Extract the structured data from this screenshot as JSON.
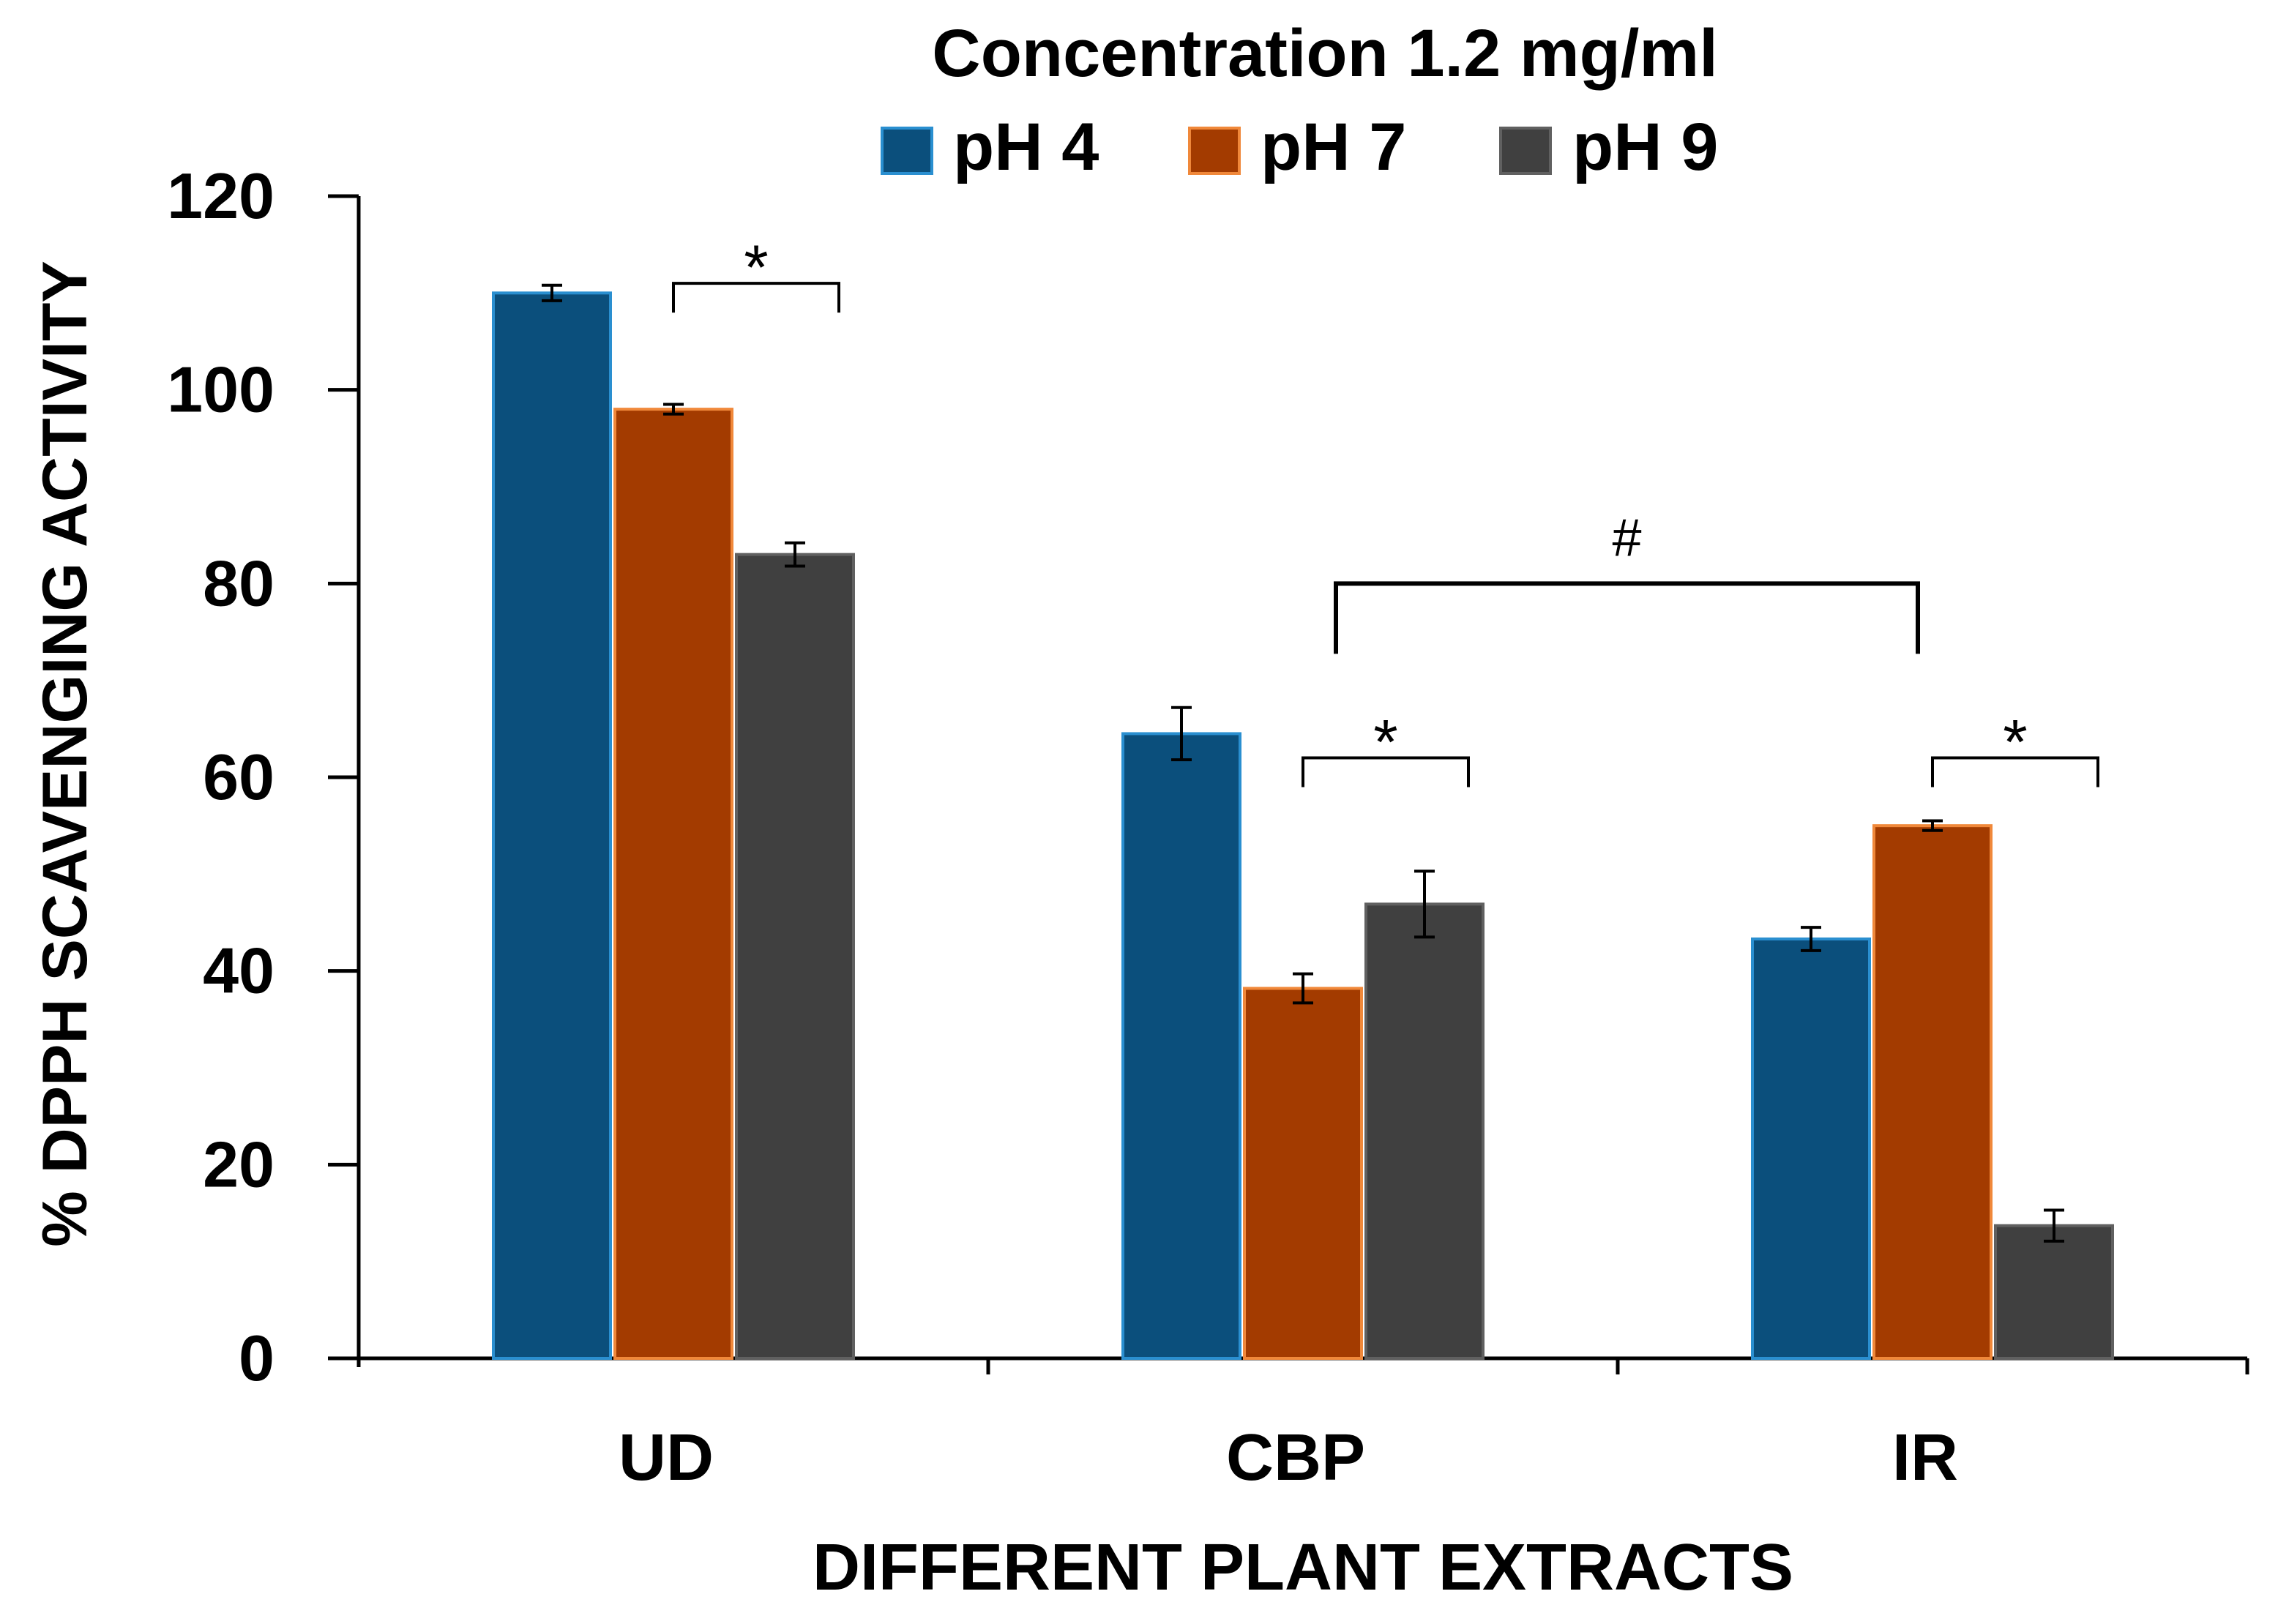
{
  "chart_data": {
    "type": "bar",
    "title": "Concentration 1.2 mg/ml",
    "xlabel": "DIFFERENT PLANT EXTRACTS",
    "ylabel": "% DPPH SCAVENGING ACTIVITY",
    "categories": [
      "UD",
      "CBP",
      "IR"
    ],
    "ylim": [
      0,
      120
    ],
    "yticks": [
      0,
      20,
      40,
      60,
      80,
      100,
      120
    ],
    "grid": false,
    "legend_position": "top",
    "series": [
      {
        "name": "pH 4",
        "color": "#0b4f7c",
        "edge": "#2a8fd0",
        "values": [
          110,
          64.5,
          43.3
        ],
        "errors": [
          0.8,
          2.7,
          1.2
        ]
      },
      {
        "name": "pH 7",
        "color": "#a33b00",
        "edge": "#f0883a",
        "values": [
          98,
          38.2,
          55
        ],
        "errors": [
          0.5,
          1.5,
          0.5
        ]
      },
      {
        "name": "pH 9",
        "color": "#404040",
        "edge": "#606060",
        "values": [
          83,
          46.9,
          13.7
        ],
        "errors": [
          1.2,
          3.4,
          1.6
        ]
      }
    ],
    "annotations": [
      {
        "label": "*",
        "category": 0,
        "from_series": 1,
        "to_series": 2,
        "level": 111
      },
      {
        "label": "*",
        "category": 1,
        "from_series": 1,
        "to_series": 2,
        "level": 62
      },
      {
        "label": "*",
        "category": 2,
        "from_series": 1,
        "to_series": 2,
        "level": 62
      },
      {
        "label": "#",
        "from_category": 1,
        "from_series": 1,
        "to_category": 2,
        "to_series": 1,
        "level": 80
      }
    ]
  }
}
